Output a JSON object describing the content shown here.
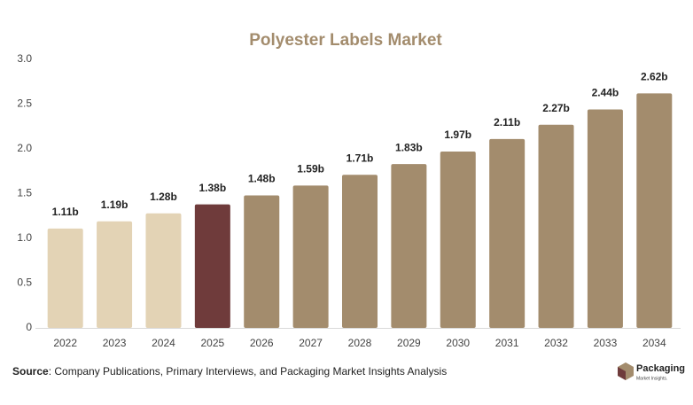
{
  "chart_data": {
    "type": "bar",
    "title": "Polyester Labels Market",
    "categories": [
      "2022",
      "2023",
      "2024",
      "2025",
      "2026",
      "2027",
      "2028",
      "2029",
      "2030",
      "2031",
      "2032",
      "2033",
      "2034"
    ],
    "values": [
      1.11,
      1.19,
      1.28,
      1.38,
      1.48,
      1.59,
      1.71,
      1.83,
      1.97,
      2.11,
      2.27,
      2.44,
      2.62
    ],
    "value_labels": [
      "1.11b",
      "1.19b",
      "1.28b",
      "1.38b",
      "1.48b",
      "1.59b",
      "1.71b",
      "1.83b",
      "1.97b",
      "2.11b",
      "2.27b",
      "2.44b",
      "2.62b"
    ],
    "colors": [
      "#e3d3b5",
      "#e3d3b5",
      "#e3d3b5",
      "#6f3b3b",
      "#a38c6d",
      "#a38c6d",
      "#a38c6d",
      "#a38c6d",
      "#a38c6d",
      "#a38c6d",
      "#a38c6d",
      "#a38c6d",
      "#a38c6d"
    ],
    "ylim": [
      0,
      3
    ],
    "yticks": [
      0,
      0.5,
      {
        "value": 1,
        "label": "1.0"
      },
      1.5,
      {
        "value": 2,
        "label": "2.0"
      },
      2.5,
      {
        "value": 3,
        "label": "3.0"
      }
    ],
    "grid": false
  },
  "footer": {
    "source_label": "Source",
    "source_text": ": Company Publications, Primary Interviews, and Packaging Market Insights Analysis"
  },
  "logo": {
    "name": "Packaging",
    "tagline": "Market Insights."
  }
}
